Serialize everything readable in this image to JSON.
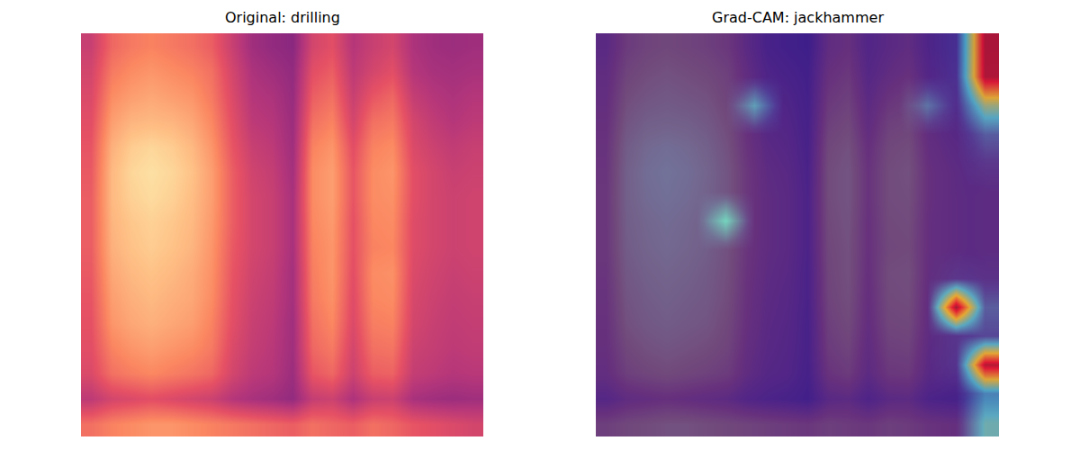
{
  "chart_data": [
    {
      "type": "heatmap",
      "title": "Original: drilling",
      "color": "magma",
      "zlim": [
        0,
        1
      ],
      "tick_labels": false,
      "cells": [
        [
          0.55,
          0.68,
          0.72,
          0.74,
          0.72,
          0.7,
          0.66,
          0.55,
          0.45,
          0.42,
          0.4,
          0.58,
          0.62,
          0.5,
          0.55,
          0.58,
          0.48,
          0.45,
          0.44,
          0.45
        ],
        [
          0.58,
          0.72,
          0.76,
          0.78,
          0.76,
          0.74,
          0.7,
          0.58,
          0.48,
          0.45,
          0.42,
          0.62,
          0.66,
          0.52,
          0.58,
          0.62,
          0.5,
          0.47,
          0.46,
          0.47
        ],
        [
          0.6,
          0.76,
          0.8,
          0.82,
          0.8,
          0.78,
          0.72,
          0.6,
          0.5,
          0.48,
          0.43,
          0.66,
          0.7,
          0.55,
          0.64,
          0.68,
          0.54,
          0.5,
          0.48,
          0.5
        ],
        [
          0.62,
          0.8,
          0.85,
          0.86,
          0.85,
          0.82,
          0.75,
          0.62,
          0.52,
          0.5,
          0.44,
          0.7,
          0.74,
          0.58,
          0.7,
          0.72,
          0.58,
          0.53,
          0.5,
          0.52
        ],
        [
          0.64,
          0.84,
          0.9,
          0.92,
          0.9,
          0.86,
          0.78,
          0.64,
          0.55,
          0.52,
          0.45,
          0.74,
          0.78,
          0.62,
          0.74,
          0.76,
          0.6,
          0.56,
          0.53,
          0.55
        ],
        [
          0.65,
          0.86,
          0.92,
          0.94,
          0.92,
          0.88,
          0.8,
          0.66,
          0.57,
          0.54,
          0.46,
          0.76,
          0.8,
          0.64,
          0.76,
          0.78,
          0.62,
          0.58,
          0.55,
          0.56
        ],
        [
          0.66,
          0.86,
          0.91,
          0.93,
          0.91,
          0.87,
          0.8,
          0.66,
          0.58,
          0.55,
          0.47,
          0.76,
          0.8,
          0.64,
          0.76,
          0.77,
          0.62,
          0.58,
          0.56,
          0.57
        ],
        [
          0.66,
          0.85,
          0.89,
          0.91,
          0.89,
          0.86,
          0.79,
          0.66,
          0.58,
          0.55,
          0.47,
          0.75,
          0.79,
          0.63,
          0.75,
          0.76,
          0.61,
          0.58,
          0.56,
          0.57
        ],
        [
          0.66,
          0.84,
          0.88,
          0.9,
          0.88,
          0.85,
          0.78,
          0.65,
          0.58,
          0.55,
          0.47,
          0.74,
          0.78,
          0.63,
          0.74,
          0.75,
          0.61,
          0.58,
          0.56,
          0.57
        ],
        [
          0.65,
          0.82,
          0.86,
          0.88,
          0.86,
          0.83,
          0.77,
          0.64,
          0.57,
          0.54,
          0.46,
          0.73,
          0.78,
          0.62,
          0.76,
          0.77,
          0.6,
          0.57,
          0.55,
          0.56
        ],
        [
          0.64,
          0.8,
          0.84,
          0.86,
          0.84,
          0.82,
          0.76,
          0.63,
          0.56,
          0.53,
          0.46,
          0.72,
          0.77,
          0.61,
          0.75,
          0.76,
          0.59,
          0.56,
          0.54,
          0.55
        ],
        [
          0.63,
          0.78,
          0.82,
          0.84,
          0.82,
          0.8,
          0.74,
          0.62,
          0.55,
          0.52,
          0.45,
          0.7,
          0.75,
          0.6,
          0.73,
          0.74,
          0.58,
          0.55,
          0.53,
          0.54
        ],
        [
          0.62,
          0.74,
          0.78,
          0.8,
          0.78,
          0.76,
          0.72,
          0.6,
          0.54,
          0.51,
          0.45,
          0.68,
          0.72,
          0.58,
          0.7,
          0.71,
          0.56,
          0.54,
          0.52,
          0.53
        ],
        [
          0.6,
          0.7,
          0.73,
          0.75,
          0.73,
          0.71,
          0.68,
          0.58,
          0.52,
          0.5,
          0.44,
          0.64,
          0.68,
          0.56,
          0.66,
          0.67,
          0.54,
          0.52,
          0.5,
          0.51
        ],
        [
          0.52,
          0.58,
          0.6,
          0.62,
          0.6,
          0.58,
          0.56,
          0.5,
          0.47,
          0.45,
          0.42,
          0.54,
          0.56,
          0.48,
          0.55,
          0.56,
          0.47,
          0.45,
          0.44,
          0.45
        ],
        [
          0.7,
          0.74,
          0.76,
          0.78,
          0.78,
          0.76,
          0.74,
          0.72,
          0.7,
          0.68,
          0.66,
          0.7,
          0.68,
          0.66,
          0.7,
          0.68,
          0.64,
          0.62,
          0.6,
          0.58
        ]
      ]
    },
    {
      "type": "heatmap_overlay",
      "title": "Grad-CAM: jackhammer",
      "color": "jet",
      "zlim": [
        0,
        1
      ],
      "tick_labels": false,
      "cells": [
        [
          0.05,
          0.05,
          0.05,
          0.05,
          0.05,
          0.05,
          0.05,
          0.05,
          0.05,
          0.05,
          0.05,
          0.05,
          0.1,
          0.95
        ],
        [
          0.05,
          0.05,
          0.05,
          0.05,
          0.05,
          0.05,
          0.05,
          0.05,
          0.05,
          0.05,
          0.05,
          0.05,
          0.1,
          0.95
        ],
        [
          0.05,
          0.05,
          0.05,
          0.05,
          0.05,
          0.35,
          0.05,
          0.05,
          0.05,
          0.05,
          0.05,
          0.25,
          0.08,
          0.5
        ],
        [
          0.05,
          0.05,
          0.05,
          0.05,
          0.05,
          0.05,
          0.05,
          0.05,
          0.05,
          0.05,
          0.05,
          0.05,
          0.05,
          0.2
        ],
        [
          0.05,
          0.05,
          0.05,
          0.05,
          0.05,
          0.05,
          0.05,
          0.05,
          0.05,
          0.05,
          0.05,
          0.05,
          0.05,
          0.1
        ],
        [
          0.05,
          0.05,
          0.05,
          0.05,
          0.05,
          0.05,
          0.05,
          0.05,
          0.05,
          0.05,
          0.05,
          0.05,
          0.05,
          0.05
        ],
        [
          0.05,
          0.05,
          0.05,
          0.05,
          0.38,
          0.05,
          0.05,
          0.05,
          0.05,
          0.05,
          0.05,
          0.05,
          0.05,
          0.05
        ],
        [
          0.05,
          0.05,
          0.05,
          0.05,
          0.05,
          0.05,
          0.05,
          0.05,
          0.05,
          0.05,
          0.05,
          0.05,
          0.05,
          0.05
        ],
        [
          0.05,
          0.05,
          0.05,
          0.05,
          0.05,
          0.05,
          0.05,
          0.05,
          0.05,
          0.05,
          0.05,
          0.05,
          0.1,
          0.08
        ],
        [
          0.05,
          0.05,
          0.05,
          0.05,
          0.05,
          0.05,
          0.05,
          0.05,
          0.05,
          0.05,
          0.05,
          0.05,
          1.0,
          0.2
        ],
        [
          0.05,
          0.05,
          0.05,
          0.05,
          0.05,
          0.05,
          0.05,
          0.05,
          0.05,
          0.05,
          0.05,
          0.05,
          0.1,
          0.15
        ],
        [
          0.05,
          0.05,
          0.05,
          0.05,
          0.05,
          0.05,
          0.05,
          0.05,
          0.05,
          0.05,
          0.05,
          0.05,
          0.1,
          0.95
        ],
        [
          0.05,
          0.05,
          0.05,
          0.05,
          0.05,
          0.05,
          0.05,
          0.05,
          0.05,
          0.05,
          0.05,
          0.05,
          0.05,
          0.3
        ],
        [
          0.05,
          0.05,
          0.05,
          0.05,
          0.05,
          0.05,
          0.05,
          0.05,
          0.05,
          0.05,
          0.05,
          0.05,
          0.05,
          0.4
        ]
      ]
    }
  ]
}
